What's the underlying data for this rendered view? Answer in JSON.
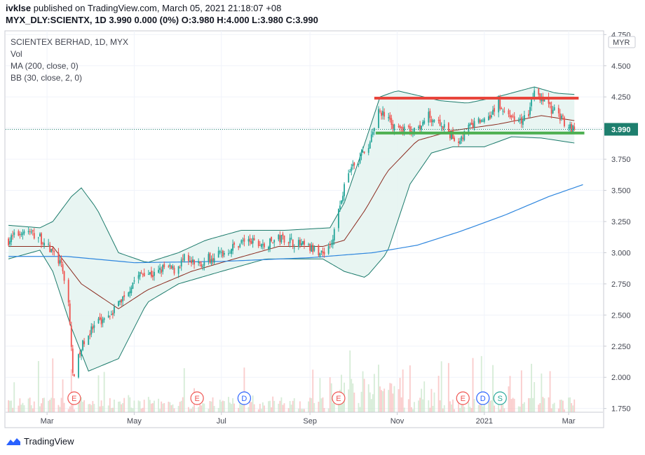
{
  "header": {
    "user": "ivklse",
    "published_text": "published on TradingView.com, March 05, 2021 21:18:07 +08",
    "ticker_line": "MYX_DLY:SCIENTX, 1D 3.990 0.000 (0%) O:3.980 H:4.000 L:3.980 C:3.990"
  },
  "legend": {
    "title": "SCIENTEX BERHAD, 1D, MYX",
    "vol": "Vol",
    "ma": "MA (200, close, 0)",
    "bb": "BB (30, close, 2, 0)"
  },
  "footer": {
    "brand": "TradingView"
  },
  "colors": {
    "up": "#26a69a",
    "down": "#ef5350",
    "bb_band": "#1b7a6b",
    "bb_fill": "#e6f4f1",
    "bb_basis": "#8b2b1f",
    "ma200": "#2e86de",
    "resistance": "#e8453c",
    "support": "#4caf50",
    "last_price_bg": "#1e7f6e"
  },
  "chart_data": {
    "type": "candlestick",
    "title": "SCIENTEX BERHAD, 1D, MYX",
    "currency": "MYR",
    "last_price": "3.990",
    "y_ticks": [
      "4.750",
      "4.500",
      "4.250",
      "4.000",
      "3.750",
      "3.500",
      "3.250",
      "3.000",
      "2.750",
      "2.500",
      "2.250",
      "2.000",
      "1.750"
    ],
    "y_tick_values": [
      4.75,
      4.5,
      4.25,
      4.0,
      3.75,
      3.5,
      3.25,
      3.0,
      2.75,
      2.5,
      2.25,
      2.0,
      1.75
    ],
    "ylim": [
      1.72,
      4.78
    ],
    "x_ticks": [
      "Mar",
      "May",
      "Jul",
      "Sep",
      "Nov",
      "2021",
      "Mar"
    ],
    "x_tick_dates": [
      "2020-03-01",
      "2020-05-01",
      "2020-07-01",
      "2020-09-01",
      "2020-11-01",
      "2021-01-01",
      "2021-03-01"
    ],
    "xlim": [
      "2020-02-01",
      "2021-03-25"
    ],
    "resistance_level": 4.24,
    "support_level": 3.96,
    "events": [
      {
        "label": "E",
        "date": "2020-03-20"
      },
      {
        "label": "E",
        "date": "2020-06-14"
      },
      {
        "label": "D",
        "date": "2020-07-17"
      },
      {
        "label": "E",
        "date": "2020-09-21"
      },
      {
        "label": "E",
        "date": "2020-12-17"
      },
      {
        "label": "D",
        "date": "2020-12-31"
      },
      {
        "label": "S",
        "date": "2021-01-12"
      }
    ],
    "price_path": [
      [
        "2020-02-03",
        3.1
      ],
      [
        "2020-02-14",
        3.18
      ],
      [
        "2020-02-25",
        3.12
      ],
      [
        "2020-03-05",
        3.0
      ],
      [
        "2020-03-10",
        2.92
      ],
      [
        "2020-03-13",
        2.8
      ],
      [
        "2020-03-16",
        2.6
      ],
      [
        "2020-03-18",
        2.25
      ],
      [
        "2020-03-19",
        2.0
      ],
      [
        "2020-03-23",
        2.15
      ],
      [
        "2020-03-27",
        2.3
      ],
      [
        "2020-04-03",
        2.4
      ],
      [
        "2020-04-10",
        2.48
      ],
      [
        "2020-04-17",
        2.55
      ],
      [
        "2020-04-24",
        2.65
      ],
      [
        "2020-05-01",
        2.78
      ],
      [
        "2020-05-08",
        2.85
      ],
      [
        "2020-05-15",
        2.82
      ],
      [
        "2020-05-22",
        2.88
      ],
      [
        "2020-05-29",
        2.86
      ],
      [
        "2020-06-05",
        2.95
      ],
      [
        "2020-06-12",
        2.9
      ],
      [
        "2020-06-19",
        2.93
      ],
      [
        "2020-06-26",
        2.98
      ],
      [
        "2020-07-03",
        3.0
      ],
      [
        "2020-07-10",
        3.05
      ],
      [
        "2020-07-17",
        3.1
      ],
      [
        "2020-07-24",
        3.08
      ],
      [
        "2020-07-31",
        3.05
      ],
      [
        "2020-08-07",
        3.1
      ],
      [
        "2020-08-14",
        3.12
      ],
      [
        "2020-08-21",
        3.08
      ],
      [
        "2020-08-28",
        3.05
      ],
      [
        "2020-09-04",
        3.02
      ],
      [
        "2020-09-10",
        3.0
      ],
      [
        "2020-09-17",
        3.1
      ],
      [
        "2020-09-22",
        3.4
      ],
      [
        "2020-09-28",
        3.65
      ],
      [
        "2020-10-05",
        3.75
      ],
      [
        "2020-10-12",
        3.85
      ],
      [
        "2020-10-16",
        4.0
      ],
      [
        "2020-10-19",
        4.15
      ],
      [
        "2020-10-26",
        4.05
      ],
      [
        "2020-11-02",
        4.0
      ],
      [
        "2020-11-09",
        3.98
      ],
      [
        "2020-11-16",
        4.02
      ],
      [
        "2020-11-23",
        4.1
      ],
      [
        "2020-11-30",
        4.05
      ],
      [
        "2020-12-07",
        3.95
      ],
      [
        "2020-12-14",
        3.9
      ],
      [
        "2020-12-21",
        4.0
      ],
      [
        "2020-12-28",
        4.05
      ],
      [
        "2021-01-04",
        4.1
      ],
      [
        "2021-01-11",
        4.2
      ],
      [
        "2021-01-18",
        4.1
      ],
      [
        "2021-01-25",
        4.05
      ],
      [
        "2021-02-01",
        4.1
      ],
      [
        "2021-02-05",
        4.3
      ],
      [
        "2021-02-10",
        4.25
      ],
      [
        "2021-02-17",
        4.15
      ],
      [
        "2021-02-22",
        4.1
      ],
      [
        "2021-02-26",
        4.05
      ],
      [
        "2021-03-05",
        3.99
      ]
    ],
    "ma200_path": [
      [
        "2020-02-03",
        2.97
      ],
      [
        "2020-03-15",
        2.97
      ],
      [
        "2020-05-01",
        2.92
      ],
      [
        "2020-07-01",
        2.93
      ],
      [
        "2020-09-01",
        2.96
      ],
      [
        "2020-10-15",
        3.0
      ],
      [
        "2020-11-15",
        3.06
      ],
      [
        "2020-12-15",
        3.17
      ],
      [
        "2021-01-15",
        3.3
      ],
      [
        "2021-02-15",
        3.45
      ],
      [
        "2021-03-12",
        3.55
      ]
    ],
    "bb_upper_path": [
      [
        "2020-02-03",
        3.22
      ],
      [
        "2020-02-25",
        3.2
      ],
      [
        "2020-03-05",
        3.25
      ],
      [
        "2020-03-18",
        3.45
      ],
      [
        "2020-03-25",
        3.52
      ],
      [
        "2020-04-05",
        3.35
      ],
      [
        "2020-04-20",
        3.0
      ],
      [
        "2020-05-10",
        2.92
      ],
      [
        "2020-06-01",
        3.0
      ],
      [
        "2020-06-20",
        3.1
      ],
      [
        "2020-07-15",
        3.18
      ],
      [
        "2020-08-15",
        3.18
      ],
      [
        "2020-09-15",
        3.2
      ],
      [
        "2020-09-25",
        3.4
      ],
      [
        "2020-10-10",
        3.9
      ],
      [
        "2020-10-20",
        4.25
      ],
      [
        "2020-11-01",
        4.3
      ],
      [
        "2020-12-01",
        4.22
      ],
      [
        "2020-12-20",
        4.2
      ],
      [
        "2021-01-10",
        4.25
      ],
      [
        "2021-02-05",
        4.33
      ],
      [
        "2021-02-20",
        4.28
      ],
      [
        "2021-03-05",
        4.27
      ]
    ],
    "bb_lower_path": [
      [
        "2020-02-03",
        2.95
      ],
      [
        "2020-02-25",
        3.02
      ],
      [
        "2020-03-05",
        2.85
      ],
      [
        "2020-03-18",
        2.4
      ],
      [
        "2020-03-30",
        2.05
      ],
      [
        "2020-04-20",
        2.15
      ],
      [
        "2020-05-10",
        2.6
      ],
      [
        "2020-06-01",
        2.75
      ],
      [
        "2020-07-01",
        2.85
      ],
      [
        "2020-08-01",
        2.95
      ],
      [
        "2020-09-10",
        2.95
      ],
      [
        "2020-09-25",
        2.85
      ],
      [
        "2020-10-10",
        2.8
      ],
      [
        "2020-10-25",
        3.0
      ],
      [
        "2020-11-10",
        3.55
      ],
      [
        "2020-11-25",
        3.8
      ],
      [
        "2020-12-10",
        3.85
      ],
      [
        "2021-01-01",
        3.85
      ],
      [
        "2021-01-20",
        3.93
      ],
      [
        "2021-02-10",
        3.92
      ],
      [
        "2021-03-05",
        3.88
      ]
    ],
    "bb_basis_path": [
      [
        "2020-02-03",
        3.05
      ],
      [
        "2020-03-05",
        3.05
      ],
      [
        "2020-03-25",
        2.75
      ],
      [
        "2020-04-20",
        2.55
      ],
      [
        "2020-05-10",
        2.7
      ],
      [
        "2020-06-10",
        2.85
      ],
      [
        "2020-07-10",
        2.95
      ],
      [
        "2020-08-10",
        3.05
      ],
      [
        "2020-09-10",
        3.05
      ],
      [
        "2020-09-25",
        3.1
      ],
      [
        "2020-10-10",
        3.35
      ],
      [
        "2020-10-25",
        3.65
      ],
      [
        "2020-11-15",
        3.9
      ],
      [
        "2020-12-10",
        3.98
      ],
      [
        "2021-01-10",
        4.03
      ],
      [
        "2021-02-10",
        4.1
      ],
      [
        "2021-03-05",
        4.06
      ]
    ]
  }
}
